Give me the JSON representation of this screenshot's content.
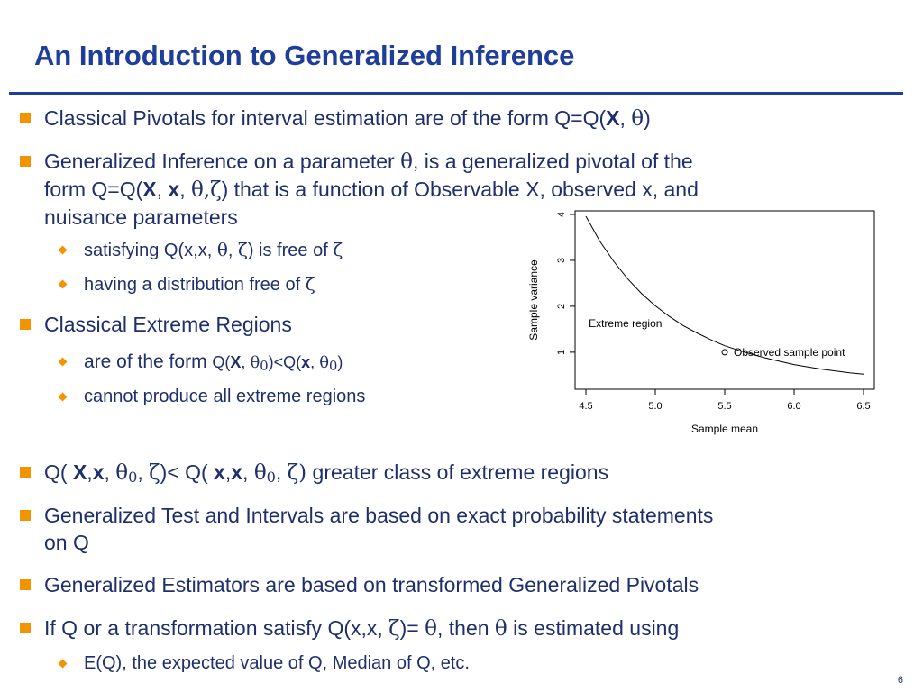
{
  "slide": {
    "title": "An Introduction to Generalized Inference",
    "page_number": "6"
  },
  "bullets": {
    "b1": {
      "t1": "Classical Pivotals for interval estimation are of the form Q=Q(",
      "X": "X",
      "t2": ", ",
      "theta": "θ",
      "t3": ")"
    },
    "b2": {
      "l1a": "Generalized Inference on a parameter ",
      "theta": "θ",
      "l1b": ", is a generalized pivotal of the",
      "l2a": "form Q=Q(",
      "X": "X",
      "c1": ", ",
      "x": "x",
      "c2": ", ",
      "thetazeta": "θ,ζ",
      "l2b": ") that is a function of Observable X, observed x, and",
      "l3": "nuisance parameters"
    },
    "b2_sub1": {
      "t1": "satisfying Q(x,x, ",
      "theta": "θ",
      "t2": ", ",
      "zeta": "ζ",
      "t3": ") is free of ",
      "zeta2": "ζ"
    },
    "b2_sub2": {
      "t1": "having a distribution free of ",
      "zeta": "ζ"
    },
    "b3": {
      "t1": "Classical Extreme Regions"
    },
    "b3_sub1": {
      "t1": "are of the form ",
      "t2": "Q(",
      "X": "X",
      "c1": ", ",
      "theta": "θ",
      "sub0": "0",
      "t3": ")<Q(",
      "x": "x",
      "c2": ", ",
      "theta2": "θ",
      "sub02": "0",
      "t4": ")"
    },
    "b3_sub2": {
      "t1": "cannot produce all extreme regions"
    },
    "b4": {
      "t1": "Q( ",
      "X": "X",
      "c1": ",",
      "x": "x",
      "c2": ", ",
      "theta": "θ",
      "sub0": "0",
      "c3": ", ",
      "zeta": "ζ",
      "t2": ")< Q( ",
      "x1": "x",
      "c4": ",",
      "x2": "x",
      "c5": ", ",
      "theta2": "θ",
      "sub02": "0",
      "c6": ", ",
      "zeta2": "ζ",
      "t3": ")",
      "t4": " greater class of extreme regions"
    },
    "b5": {
      "l1": "Generalized Test and Intervals are based on exact probability statements",
      "l2": "on  Q"
    },
    "b6": {
      "t1": "Generalized Estimators are based on transformed Generalized Pivotals"
    },
    "b7": {
      "t1": "If Q or a transformation satisfy Q(x,x, ",
      "zeta": "ζ",
      "t2": ")= ",
      "theta": "θ",
      "t3": ", then ",
      "theta2": "θ",
      "t4": " is estimated using"
    },
    "b7_sub1": {
      "t1": "E(Q), the expected value of Q, Median of Q, etc."
    }
  },
  "colors": {
    "title": "#1f3e9a",
    "bullet": "#f29400",
    "text": "#1f2f6b"
  },
  "chart_data": {
    "type": "line",
    "xlabel": "Sample mean",
    "ylabel": "Sample variance",
    "xlim": [
      4.5,
      6.5
    ],
    "ylim": [
      0.35,
      4
    ],
    "xticks": [
      "4.5",
      "5.0",
      "5.5",
      "6.0",
      "6.5"
    ],
    "yticks": [
      "1",
      "2",
      "3",
      "4"
    ],
    "series": [
      {
        "x": [
          4.5,
          4.6,
          4.7,
          4.8,
          4.9,
          5.0,
          5.1,
          5.2,
          5.3,
          5.4,
          5.5,
          5.6,
          5.7,
          5.8,
          5.9,
          6.0,
          6.1,
          6.2,
          6.3,
          6.4,
          6.5
        ],
        "y": [
          3.96,
          3.42,
          2.98,
          2.6,
          2.28,
          2.01,
          1.78,
          1.58,
          1.42,
          1.27,
          1.14,
          1.04,
          0.95,
          0.87,
          0.8,
          0.73,
          0.68,
          0.63,
          0.59,
          0.55,
          0.52
        ]
      }
    ],
    "point": {
      "x": 5.5,
      "y": 1.0,
      "label": "Observed sample point"
    },
    "region_label": "Extreme region",
    "region_label_pos": {
      "x": 4.52,
      "y": 1.55
    }
  }
}
